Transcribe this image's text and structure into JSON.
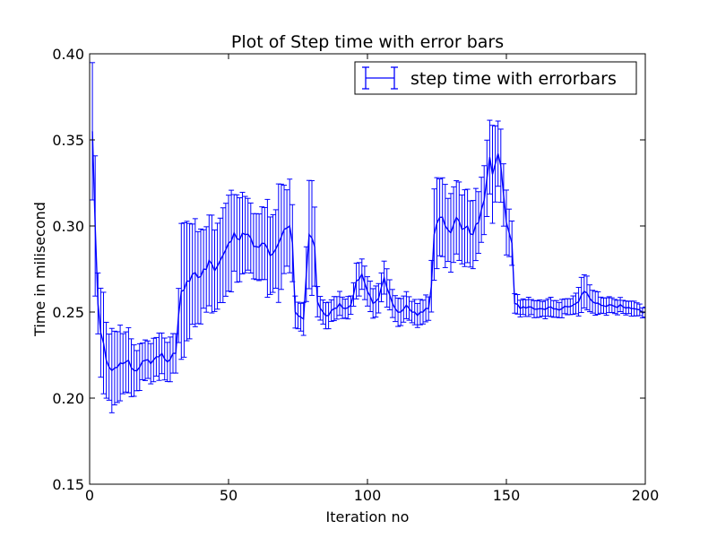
{
  "chart_data": {
    "type": "line",
    "title": "Plot of Step time with error bars",
    "xlabel": "Iteration no",
    "ylabel": "Time in milisecond",
    "xlim": [
      0,
      200
    ],
    "ylim": [
      0.15,
      0.4
    ],
    "xticks": [
      0,
      50,
      100,
      150,
      200
    ],
    "xtick_labels": [
      "0",
      "50",
      "100",
      "150",
      "200"
    ],
    "yticks": [
      0.15,
      0.2,
      0.25,
      0.3,
      0.35,
      0.4
    ],
    "ytick_labels": [
      "0.15",
      "0.20",
      "0.25",
      "0.30",
      "0.35",
      "0.40"
    ],
    "grid": false,
    "legend_position": "top-right",
    "color": "#0000ff",
    "series": [
      {
        "name": "step time with errorbars",
        "anchors": [
          [
            1,
            0.355,
            0.04
          ],
          [
            2,
            0.3,
            0.04
          ],
          [
            3,
            0.255,
            0.02
          ],
          [
            4,
            0.238,
            0.028
          ],
          [
            5,
            0.232,
            0.03
          ],
          [
            6,
            0.222,
            0.022
          ],
          [
            7,
            0.218,
            0.022
          ],
          [
            8,
            0.216,
            0.022
          ],
          [
            10,
            0.218,
            0.022
          ],
          [
            12,
            0.22,
            0.02
          ],
          [
            14,
            0.222,
            0.018
          ],
          [
            16,
            0.216,
            0.015
          ],
          [
            18,
            0.218,
            0.012
          ],
          [
            20,
            0.222,
            0.012
          ],
          [
            22,
            0.22,
            0.012
          ],
          [
            24,
            0.224,
            0.012
          ],
          [
            26,
            0.226,
            0.012
          ],
          [
            28,
            0.221,
            0.012
          ],
          [
            30,
            0.226,
            0.012
          ],
          [
            31,
            0.226,
            0.012
          ],
          [
            32,
            0.248,
            0.018
          ],
          [
            33,
            0.262,
            0.035
          ],
          [
            35,
            0.268,
            0.035
          ],
          [
            37,
            0.272,
            0.03
          ],
          [
            39,
            0.27,
            0.03
          ],
          [
            41,
            0.275,
            0.026
          ],
          [
            43,
            0.28,
            0.025
          ],
          [
            45,
            0.274,
            0.025
          ],
          [
            47,
            0.28,
            0.025
          ],
          [
            48,
            0.283,
            0.025
          ],
          [
            50,
            0.29,
            0.03
          ],
          [
            52,
            0.296,
            0.025
          ],
          [
            54,
            0.292,
            0.022
          ],
          [
            56,
            0.295,
            0.02
          ],
          [
            58,
            0.293,
            0.02
          ],
          [
            60,
            0.288,
            0.02
          ],
          [
            62,
            0.29,
            0.02
          ],
          [
            64,
            0.287,
            0.025
          ],
          [
            66,
            0.284,
            0.022
          ],
          [
            68,
            0.29,
            0.03
          ],
          [
            70,
            0.298,
            0.025
          ],
          [
            72,
            0.3,
            0.025
          ],
          [
            73,
            0.29,
            0.02
          ],
          [
            74,
            0.25,
            0.01
          ],
          [
            75,
            0.248,
            0.009
          ],
          [
            76,
            0.247,
            0.009
          ],
          [
            77,
            0.246,
            0.009
          ],
          [
            78,
            0.272,
            0.015
          ],
          [
            79,
            0.295,
            0.03
          ],
          [
            80,
            0.293,
            0.03
          ],
          [
            81,
            0.288,
            0.025
          ],
          [
            82,
            0.256,
            0.008
          ],
          [
            84,
            0.25,
            0.008
          ],
          [
            86,
            0.248,
            0.007
          ],
          [
            88,
            0.252,
            0.007
          ],
          [
            90,
            0.255,
            0.007
          ],
          [
            92,
            0.252,
            0.006
          ],
          [
            94,
            0.254,
            0.006
          ],
          [
            96,
            0.268,
            0.01
          ],
          [
            98,
            0.272,
            0.01
          ],
          [
            100,
            0.262,
            0.01
          ],
          [
            102,
            0.255,
            0.008
          ],
          [
            104,
            0.258,
            0.008
          ],
          [
            106,
            0.27,
            0.01
          ],
          [
            108,
            0.26,
            0.01
          ],
          [
            110,
            0.252,
            0.008
          ],
          [
            112,
            0.25,
            0.008
          ],
          [
            114,
            0.254,
            0.007
          ],
          [
            116,
            0.25,
            0.007
          ],
          [
            118,
            0.248,
            0.007
          ],
          [
            120,
            0.25,
            0.007
          ],
          [
            122,
            0.252,
            0.007
          ],
          [
            123,
            0.265,
            0.015
          ],
          [
            124,
            0.295,
            0.025
          ],
          [
            126,
            0.305,
            0.022
          ],
          [
            128,
            0.3,
            0.022
          ],
          [
            130,
            0.296,
            0.02
          ],
          [
            132,
            0.305,
            0.022
          ],
          [
            134,
            0.298,
            0.02
          ],
          [
            136,
            0.3,
            0.02
          ],
          [
            138,
            0.295,
            0.02
          ],
          [
            140,
            0.302,
            0.02
          ],
          [
            142,
            0.315,
            0.022
          ],
          [
            144,
            0.34,
            0.025
          ],
          [
            145,
            0.33,
            0.025
          ],
          [
            146,
            0.336,
            0.022
          ],
          [
            147,
            0.342,
            0.022
          ],
          [
            148,
            0.335,
            0.022
          ],
          [
            149,
            0.318,
            0.02
          ],
          [
            150,
            0.302,
            0.018
          ],
          [
            151,
            0.296,
            0.015
          ],
          [
            152,
            0.29,
            0.012
          ],
          [
            153,
            0.255,
            0.006
          ],
          [
            155,
            0.252,
            0.005
          ],
          [
            158,
            0.253,
            0.005
          ],
          [
            162,
            0.252,
            0.005
          ],
          [
            166,
            0.253,
            0.005
          ],
          [
            170,
            0.252,
            0.005
          ],
          [
            174,
            0.254,
            0.005
          ],
          [
            176,
            0.256,
            0.008
          ],
          [
            178,
            0.262,
            0.01
          ],
          [
            180,
            0.258,
            0.008
          ],
          [
            184,
            0.254,
            0.005
          ],
          [
            188,
            0.254,
            0.004
          ],
          [
            192,
            0.253,
            0.004
          ],
          [
            196,
            0.252,
            0.004
          ],
          [
            200,
            0.25,
            0.003
          ]
        ]
      }
    ]
  }
}
